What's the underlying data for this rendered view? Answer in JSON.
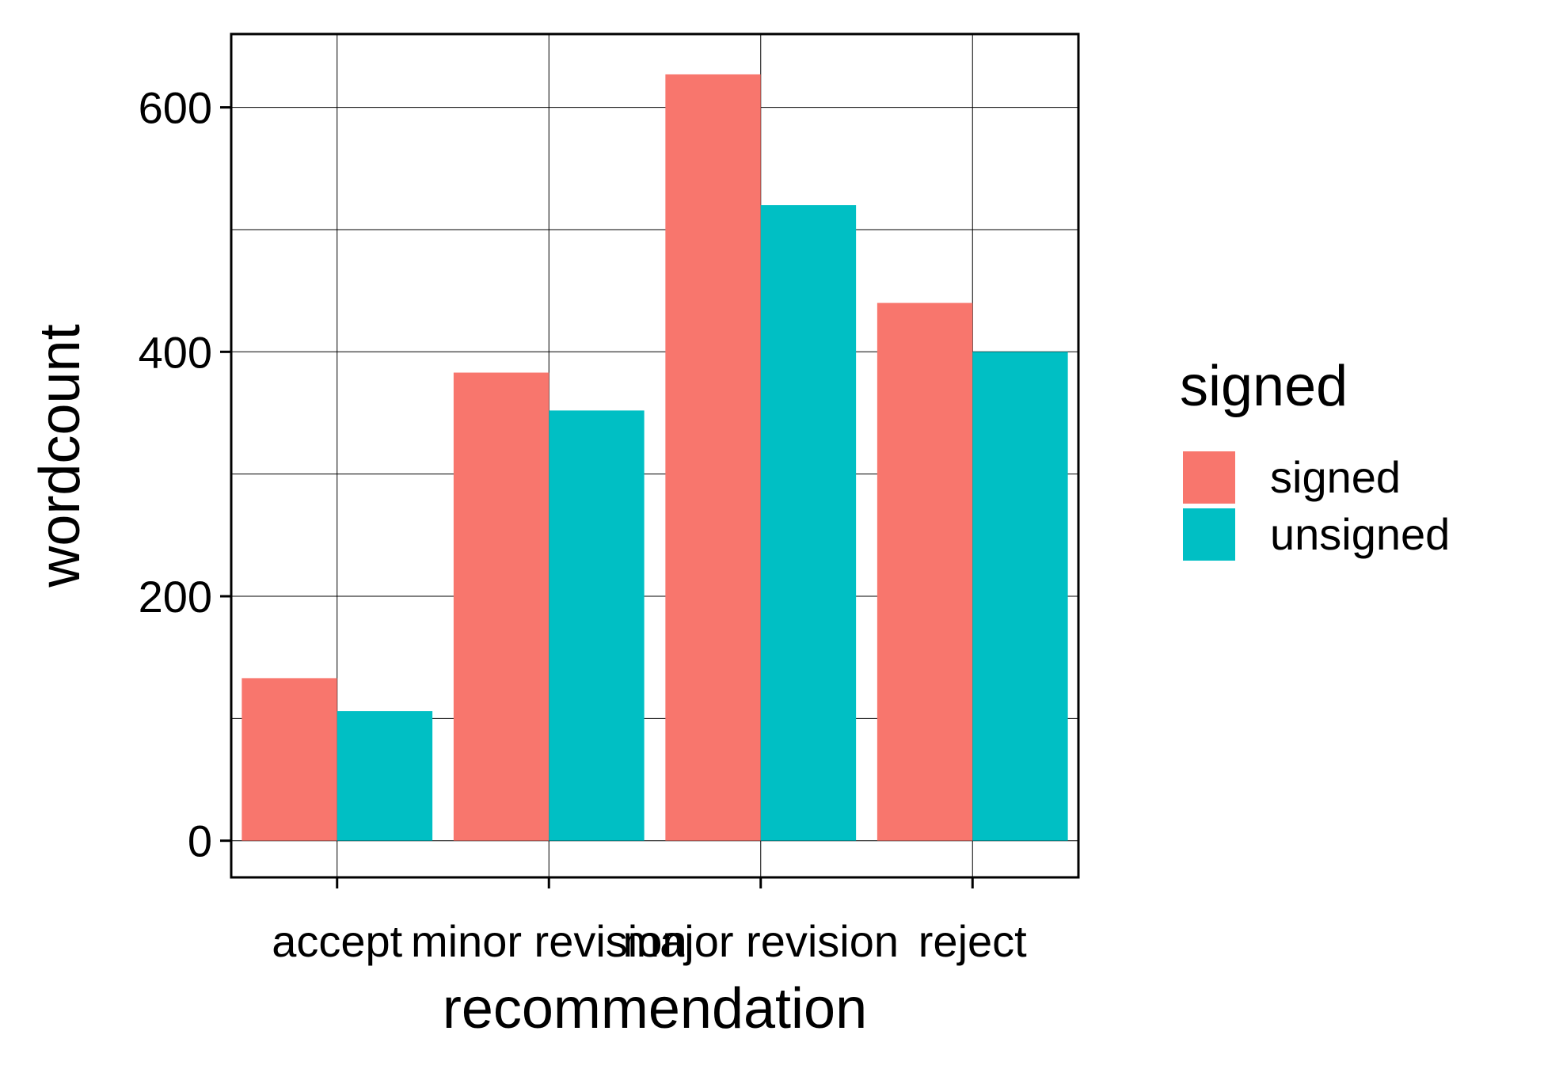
{
  "chart_data": {
    "type": "bar",
    "xlabel": "recommendation",
    "ylabel": "wordcount",
    "categories": [
      "accept",
      "minor revision",
      "major revision",
      "reject"
    ],
    "series": [
      {
        "name": "signed",
        "color": "#F8766D",
        "values": [
          133,
          383,
          627,
          440
        ]
      },
      {
        "name": "unsigned",
        "color": "#00BFC4",
        "values": [
          106,
          352,
          520,
          400
        ]
      }
    ],
    "ylim": [
      -30,
      660
    ],
    "yticks": [
      "0",
      "200",
      "400",
      "600"
    ],
    "grid": true,
    "legend": {
      "title": "signed",
      "placement": "right"
    }
  }
}
